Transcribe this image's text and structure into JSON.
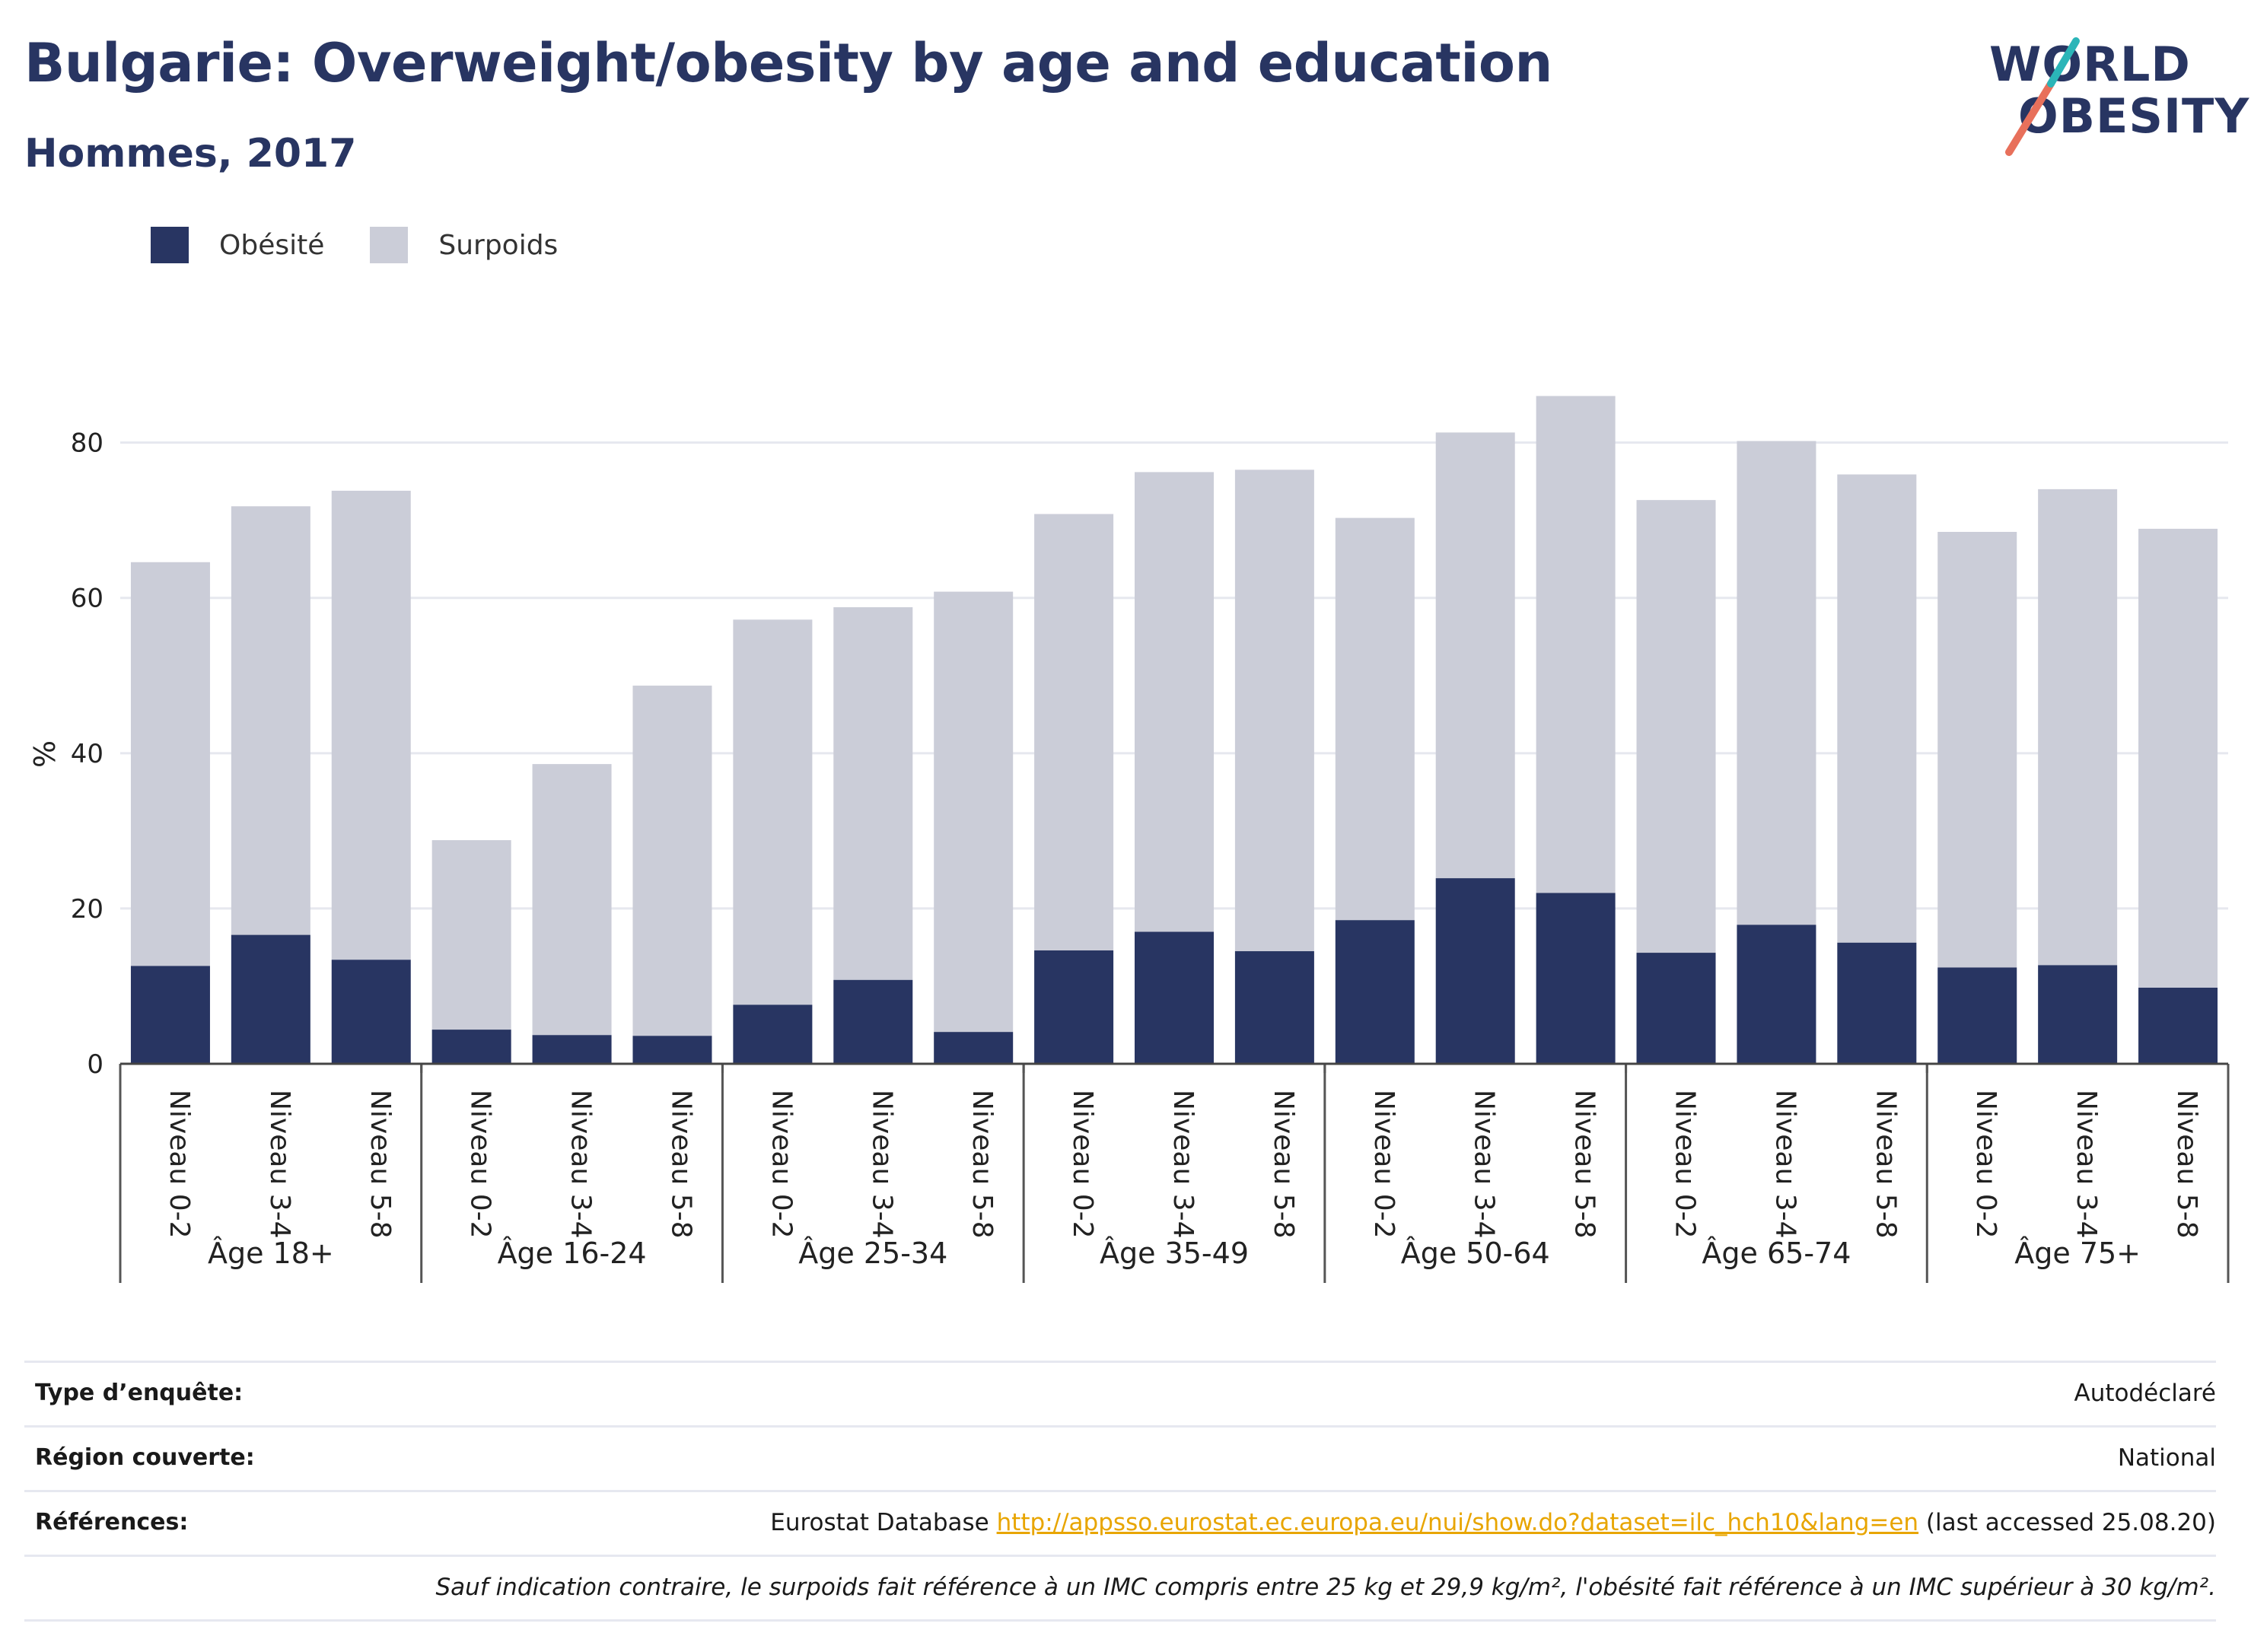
{
  "header": {
    "title": "Bulgarie: Overweight/obesity by age and education",
    "subtitle": "Hommes, 2017"
  },
  "logo": {
    "line1": "WORLD",
    "line2": "OBESITY"
  },
  "legend": [
    {
      "label": "Obésité",
      "color": "#283562"
    },
    {
      "label": "Surpoids",
      "color": "#cbcdd8"
    }
  ],
  "chart_data": {
    "type": "bar",
    "stacked": true,
    "ylabel": "%",
    "xlabel": "",
    "ylim": [
      0,
      88
    ],
    "yticks": [
      0,
      20,
      40,
      60,
      80
    ],
    "grid": true,
    "legend_position": "top-left",
    "groups": [
      {
        "label": "Âge 18+",
        "categories": [
          "Niveau 0-2",
          "Niveau 3-4",
          "Niveau 5-8"
        ]
      },
      {
        "label": "Âge 16-24",
        "categories": [
          "Niveau 0-2",
          "Niveau 3-4",
          "Niveau 5-8"
        ]
      },
      {
        "label": "Âge 25-34",
        "categories": [
          "Niveau 0-2",
          "Niveau 3-4",
          "Niveau 5-8"
        ]
      },
      {
        "label": "Âge 35-49",
        "categories": [
          "Niveau 0-2",
          "Niveau 3-4",
          "Niveau 5-8"
        ]
      },
      {
        "label": "Âge 50-64",
        "categories": [
          "Niveau 0-2",
          "Niveau 3-4",
          "Niveau 5-8"
        ]
      },
      {
        "label": "Âge 65-74",
        "categories": [
          "Niveau 0-2",
          "Niveau 3-4",
          "Niveau 5-8"
        ]
      },
      {
        "label": "Âge 75+",
        "categories": [
          "Niveau 0-2",
          "Niveau 3-4",
          "Niveau 5-8"
        ]
      }
    ],
    "series": [
      {
        "name": "Obésité",
        "color": "#283562",
        "values": [
          12.6,
          16.6,
          13.4,
          4.4,
          3.7,
          3.6,
          7.6,
          10.8,
          4.1,
          14.6,
          17.0,
          14.5,
          18.5,
          23.9,
          22.0,
          14.3,
          17.9,
          15.6,
          12.4,
          12.7,
          9.8
        ]
      },
      {
        "name": "Surpoids",
        "color": "#cbcdd8",
        "values": [
          52.0,
          55.2,
          60.4,
          24.4,
          34.9,
          45.1,
          49.6,
          48.0,
          56.7,
          56.2,
          59.2,
          62.0,
          51.8,
          57.4,
          64.0,
          58.3,
          62.3,
          60.3,
          56.1,
          61.3,
          59.1
        ]
      }
    ],
    "totals": [
      64.6,
      71.8,
      73.8,
      28.8,
      38.6,
      48.7,
      57.2,
      58.8,
      60.8,
      70.8,
      76.2,
      76.5,
      70.3,
      81.3,
      86.0,
      72.6,
      80.2,
      75.9,
      68.5,
      74.0,
      68.9
    ]
  },
  "footer": {
    "rows": [
      {
        "key": "Type d’enquête:",
        "value": "Autodéclaré"
      },
      {
        "key": "Région couverte:",
        "value": "National"
      },
      {
        "key": "Références:",
        "value_prefix": "Eurostat Database ",
        "link": "http://appsso.eurostat.ec.europa.eu/nui/show.do?dataset=ilc_hch10&lang=en",
        "value_suffix": " (last accessed 25.08.20)"
      }
    ],
    "note": "Sauf indication contraire, le surpoids fait référence à un IMC compris entre 25 kg et 29,9 kg/m², l'obésité fait référence à un IMC supérieur à 30 kg/m²."
  }
}
